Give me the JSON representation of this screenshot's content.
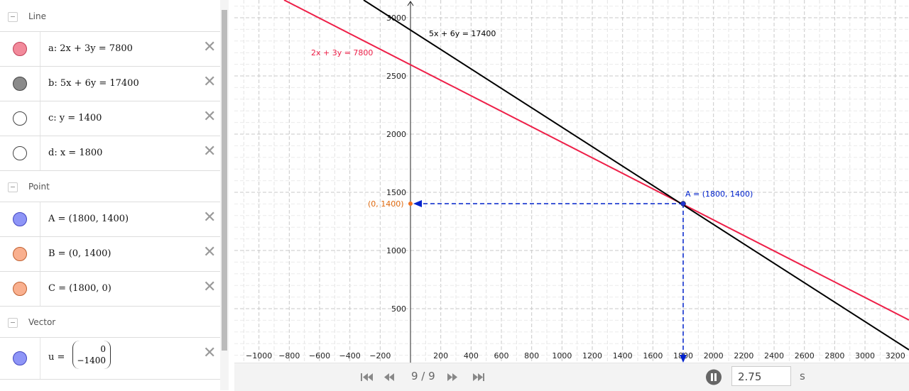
{
  "algebra": {
    "groups": [
      {
        "title": "Line",
        "items": [
          {
            "text": "a: 2x + 3y = 7800"
          },
          {
            "text": "b: 5x + 6y = 17400"
          },
          {
            "text": "c: y = 1400"
          },
          {
            "text": "d: x = 1800"
          }
        ]
      },
      {
        "title": "Point",
        "items": [
          {
            "text": "A = (1800, 1400)"
          },
          {
            "text": "B = (0, 1400)"
          },
          {
            "text": "C = (1800, 0)"
          }
        ]
      },
      {
        "title": "Vector",
        "items": [
          {
            "text": "u =",
            "matrix": [
              "0",
              "−1400"
            ]
          }
        ]
      }
    ]
  },
  "graphics": {
    "x_tick_labels": [
      "−1000",
      "−800",
      "−600",
      "−400",
      "−200",
      "200",
      "400",
      "600",
      "800",
      "1000",
      "1200",
      "1400",
      "1600",
      "1800",
      "2000",
      "2200",
      "2400",
      "2600",
      "2800",
      "3000",
      "3200"
    ],
    "y_tick_labels": [
      "500",
      "1000",
      "1500",
      "2000",
      "2500",
      "3000"
    ],
    "annotations": {
      "line_b": "5x + 6y = 17400",
      "line_a": "2x + 3y = 7800",
      "point_a": "A = (1800, 1400)",
      "point_b": "(0, 1400)"
    }
  },
  "player": {
    "step": "9 / 9",
    "speed": "2.75",
    "unit": "s"
  }
}
